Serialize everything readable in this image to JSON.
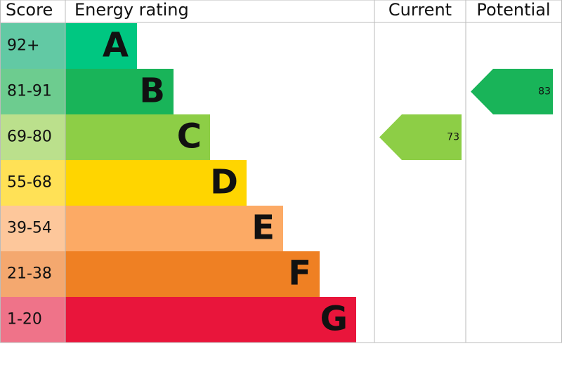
{
  "header": {
    "score": "Score",
    "rating": "Energy rating",
    "current": "Current",
    "potential": "Potential"
  },
  "bands": [
    {
      "score": "92+",
      "letter": "A",
      "color": "#00c781",
      "score_color": "#62c9a4"
    },
    {
      "score": "81-91",
      "letter": "B",
      "color": "#19b459",
      "score_color": "#6dcc8f"
    },
    {
      "score": "69-80",
      "letter": "C",
      "color": "#8dce46",
      "score_color": "#bbe08c"
    },
    {
      "score": "55-68",
      "letter": "D",
      "color": "#ffd500",
      "score_color": "#ffe156"
    },
    {
      "score": "39-54",
      "letter": "E",
      "color": "#fcaa65",
      "score_color": "#fdc79b"
    },
    {
      "score": "21-38",
      "letter": "F",
      "color": "#ef8023",
      "score_color": "#f4a86f"
    },
    {
      "score": "1-20",
      "letter": "G",
      "color": "#e9153b",
      "score_color": "#ef7389"
    }
  ],
  "current": 73,
  "potential": 83
}
